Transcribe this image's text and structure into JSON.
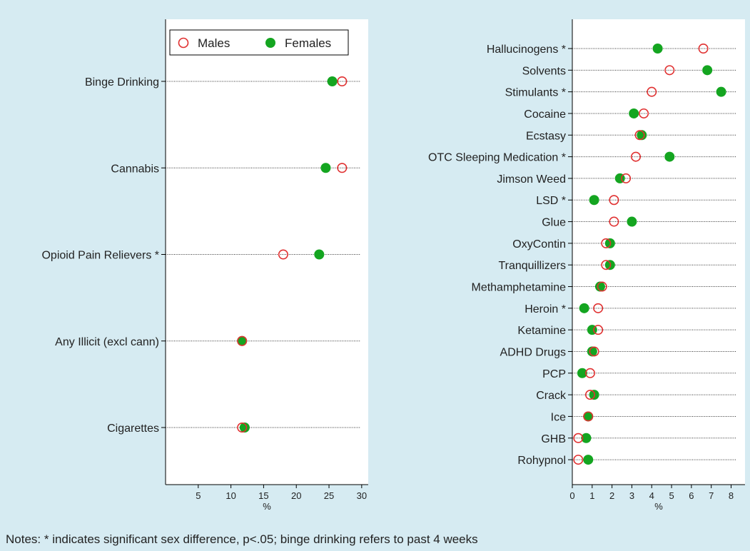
{
  "notes": "Notes: * indicates significant sex difference, p<.05; binge drinking refers to past 4 weeks",
  "colors": {
    "background": "#d6ebf2",
    "plot_area": "#ffffff",
    "males": "#e03030",
    "females": "#14a520"
  },
  "chart_data": [
    {
      "type": "scatter",
      "title": "",
      "xlabel": "%",
      "xlim": [
        0,
        31
      ],
      "xticks": [
        5,
        10,
        15,
        20,
        25,
        30
      ],
      "legend": {
        "placement": "top-left",
        "entries": [
          "Males",
          "Females"
        ]
      },
      "series": [
        {
          "name": "Males",
          "marker": "hollow-circle"
        },
        {
          "name": "Females",
          "marker": "filled-circle"
        }
      ],
      "categories": [
        "Binge Drinking",
        "Cannabis",
        "Opioid Pain Relievers *",
        "Any Illicit (excl cann)",
        "Cigarettes"
      ],
      "points": [
        {
          "label": "Binge Drinking",
          "males": 27,
          "females": 25.5
        },
        {
          "label": "Cannabis",
          "males": 27,
          "females": 24.5
        },
        {
          "label": "Opioid Pain Relievers *",
          "males": 18,
          "females": 23.5
        },
        {
          "label": "Any Illicit (excl cann)",
          "males": 11.7,
          "females": 11.7
        },
        {
          "label": "Cigarettes",
          "males": 11.7,
          "females": 12.1
        }
      ]
    },
    {
      "type": "scatter",
      "title": "",
      "xlabel": "%",
      "xlim": [
        0,
        8.7
      ],
      "xticks": [
        0,
        1,
        2,
        3,
        4,
        5,
        6,
        7,
        8
      ],
      "categories": [
        "Hallucinogens *",
        "Solvents",
        "Stimulants *",
        "Cocaine",
        "Ecstasy",
        "OTC Sleeping Medication *",
        "Jimson Weed",
        "LSD *",
        "Glue",
        "OxyContin",
        "Tranquillizers",
        "Methamphetamine",
        "Heroin *",
        "Ketamine",
        "ADHD Drugs",
        "PCP",
        "Crack",
        "Ice",
        "GHB",
        "Rohypnol"
      ],
      "points": [
        {
          "label": "Hallucinogens *",
          "males": 6.6,
          "females": 4.3
        },
        {
          "label": "Solvents",
          "males": 4.9,
          "females": 6.8
        },
        {
          "label": "Stimulants *",
          "males": 4.0,
          "females": 7.5
        },
        {
          "label": "Cocaine",
          "males": 3.6,
          "females": 3.1
        },
        {
          "label": "Ecstasy",
          "males": 3.4,
          "females": 3.5
        },
        {
          "label": "OTC Sleeping Medication *",
          "males": 3.2,
          "females": 4.9
        },
        {
          "label": "Jimson Weed",
          "males": 2.7,
          "females": 2.4
        },
        {
          "label": "LSD *",
          "males": 2.1,
          "females": 1.1
        },
        {
          "label": "Glue",
          "males": 2.1,
          "females": 3.0
        },
        {
          "label": "OxyContin",
          "males": 1.7,
          "females": 1.9
        },
        {
          "label": "Tranquillizers",
          "males": 1.7,
          "females": 1.9
        },
        {
          "label": "Methamphetamine",
          "males": 1.5,
          "females": 1.4
        },
        {
          "label": "Heroin *",
          "males": 1.3,
          "females": 0.6
        },
        {
          "label": "Ketamine",
          "males": 1.3,
          "females": 1.0
        },
        {
          "label": "ADHD Drugs",
          "males": 1.1,
          "females": 1.0
        },
        {
          "label": "PCP",
          "males": 0.9,
          "females": 0.5
        },
        {
          "label": "Crack",
          "males": 0.9,
          "females": 1.1
        },
        {
          "label": "Ice",
          "males": 0.8,
          "females": 0.8
        },
        {
          "label": "GHB",
          "males": 0.3,
          "females": 0.7
        },
        {
          "label": "Rohypnol",
          "males": 0.3,
          "females": 0.8
        }
      ]
    }
  ]
}
